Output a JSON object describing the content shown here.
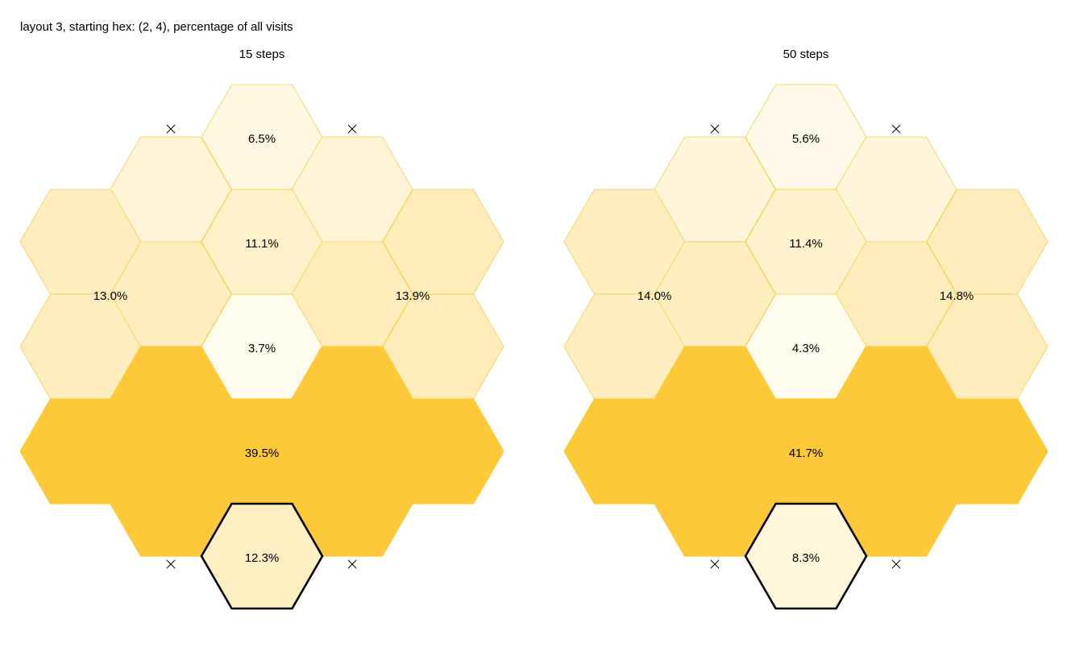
{
  "page_title": "layout 3, starting hex: (2, 4), percentage of all visits",
  "colors": {
    "max": "#fdc938",
    "min": "#fffbef",
    "edge": "#f5cf4a",
    "start_outline": "#000000",
    "marker": "#000000"
  },
  "panels": [
    {
      "title": "15 steps",
      "regions": [
        {
          "id": "top",
          "label": "6.5%",
          "value": 6.5
        },
        {
          "id": "upper-left",
          "label": "",
          "value": 8.5
        },
        {
          "id": "upper-right",
          "label": "",
          "value": 8.5
        },
        {
          "id": "center",
          "label": "11.1%",
          "value": 11.1
        },
        {
          "id": "left",
          "label": "13.0%",
          "value": 13.0
        },
        {
          "id": "right",
          "label": "13.9%",
          "value": 13.9
        },
        {
          "id": "inner",
          "label": "3.7%",
          "value": 3.7
        },
        {
          "id": "bottom-band",
          "label": "39.5%",
          "value": 39.5
        },
        {
          "id": "start",
          "label": "12.3%",
          "value": 12.3
        }
      ]
    },
    {
      "title": "50 steps",
      "regions": [
        {
          "id": "top",
          "label": "5.6%",
          "value": 5.6
        },
        {
          "id": "upper-left",
          "label": "",
          "value": 8.5
        },
        {
          "id": "upper-right",
          "label": "",
          "value": 8.5
        },
        {
          "id": "center",
          "label": "11.4%",
          "value": 11.4
        },
        {
          "id": "left",
          "label": "14.0%",
          "value": 14.0
        },
        {
          "id": "right",
          "label": "14.8%",
          "value": 14.8
        },
        {
          "id": "inner",
          "label": "4.3%",
          "value": 4.3
        },
        {
          "id": "bottom-band",
          "label": "41.7%",
          "value": 41.7
        },
        {
          "id": "start",
          "label": "8.3%",
          "value": 8.3
        }
      ]
    }
  ]
}
